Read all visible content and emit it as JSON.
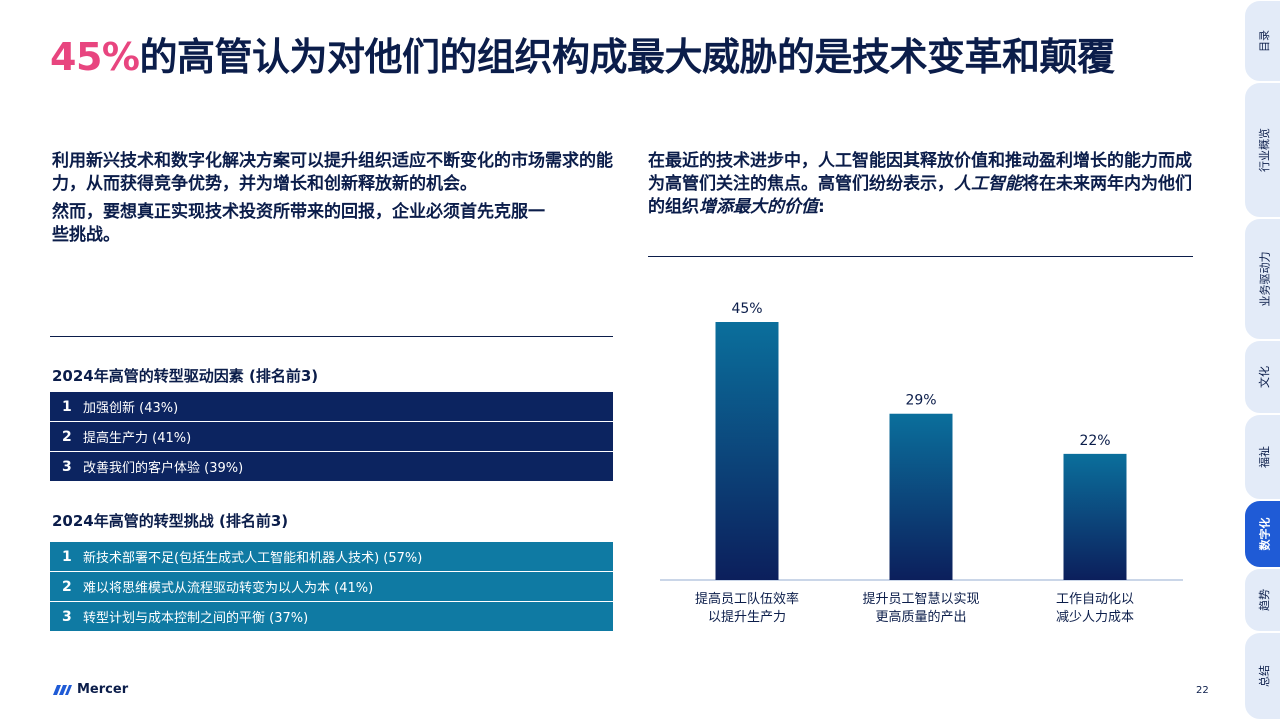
{
  "title": {
    "highlight": "45%",
    "rest": "的高管认为对他们的组织构成最大威胁的是技术变革和颠覆"
  },
  "left_intro": {
    "p1": "利用新兴技术和数字化解决方案可以提升组织适应不断变化的市场需求的能力，从而获得竞争优势，并为增长和创新释放新的机会。",
    "p2": "然而，要想真正实现技术投资所带来的回报，企业必须首先克服一些挑战。"
  },
  "right_intro": {
    "part1": "在最近的技术进步中，人工智能因其释放价值和推动盈利增长的能力而成为高管们关注的焦点。高管们纷纷表示，",
    "em1": "人工智能",
    "part2": "将在未来两年内为他们的组织",
    "em2": "增添最大的价值",
    "part3": ":"
  },
  "drivers": {
    "heading": "2024年高管的转型驱动因素 (排名前3)",
    "items": [
      {
        "num": "1",
        "text": "加强创新 (43%)"
      },
      {
        "num": "2",
        "text": "提高生产力 (41%)"
      },
      {
        "num": "3",
        "text": "改善我们的客户体验 (39%)"
      }
    ]
  },
  "challenges": {
    "heading": "2024年高管的转型挑战 (排名前3)",
    "items": [
      {
        "num": "1",
        "text": "新技术部署不足(包括生成式人工智能和机器人技术) (57%)"
      },
      {
        "num": "2",
        "text": "难以将思维模式从流程驱动转变为以人为本 (41%)"
      },
      {
        "num": "3",
        "text": "转型计划与成本控制之间的平衡 (37%)"
      }
    ]
  },
  "chart_data": {
    "type": "bar",
    "categories": [
      [
        "提高员工队伍效率",
        "以提升生产力"
      ],
      [
        "提升员工智慧以实现",
        "更高质量的产出"
      ],
      [
        "工作自动化以",
        "减少人力成本"
      ]
    ],
    "values": [
      45,
      29,
      22
    ],
    "value_labels": [
      "45%",
      "29%",
      "22%"
    ],
    "ylim": [
      0,
      45
    ],
    "grid": false,
    "colors": {
      "top": "#0b6f9c",
      "bottom": "#0c1f5c"
    }
  },
  "footer": {
    "brand": "Mercer",
    "page": "22"
  },
  "side_tabs": [
    {
      "label": "目录",
      "active": false
    },
    {
      "label": "行业概览",
      "active": false
    },
    {
      "label": "业务驱动力",
      "active": false
    },
    {
      "label": "文化",
      "active": false
    },
    {
      "label": "福祉",
      "active": false
    },
    {
      "label": "数字化",
      "active": true
    },
    {
      "label": "趋势",
      "active": false
    },
    {
      "label": "总结",
      "active": false
    }
  ],
  "colors": {
    "accent": "#e8457f",
    "navy": "#0b1d4a",
    "teal": "#0f7aa3",
    "active_tab": "#1f5bd6"
  }
}
